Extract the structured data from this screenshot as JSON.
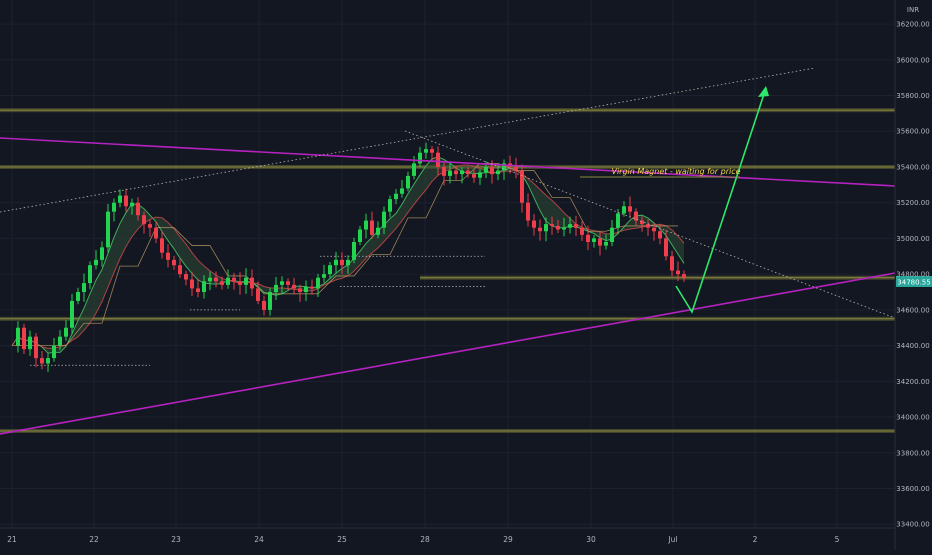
{
  "chart_data": {
    "type": "candlestick",
    "currency": "INR",
    "last_price_label": "34780.55",
    "annotation": "Virgin Magnet - waiting for price",
    "y_axis_ticks": [
      "36200.00",
      "36000.00",
      "35800.00",
      "35600.00",
      "35400.00",
      "35200.00",
      "35000.00",
      "34800.00",
      "34600.00",
      "34400.00",
      "34200.00",
      "34000.00",
      "33800.00",
      "33600.00",
      "33400.00"
    ],
    "x_axis_ticks": [
      "21",
      "22",
      "23",
      "24",
      "25",
      "28",
      "29",
      "30",
      "Jul",
      "2",
      "5"
    ],
    "ylim": [
      33390,
      36290
    ],
    "horizontal_levels": [
      35718,
      35400,
      34780,
      34550,
      33922
    ],
    "colors": {
      "background": "#131722",
      "up": "#26a69a",
      "up_bright": "#22d44f",
      "down": "#ef3e4c",
      "resistance_band": "#6b6a35",
      "trendline": "#b622c0",
      "projection": "#2ee86a",
      "ichimoku_cloud": "#2e4a34",
      "dotted": "#b8b8b8"
    },
    "ohlc_close_path": [
      [
        0,
        34400
      ],
      [
        6,
        34500
      ],
      [
        12,
        34380
      ],
      [
        18,
        34450
      ],
      [
        24,
        34330
      ],
      [
        30,
        34300
      ],
      [
        36,
        34330
      ],
      [
        42,
        34400
      ],
      [
        48,
        34450
      ],
      [
        54,
        34500
      ],
      [
        60,
        34650
      ],
      [
        66,
        34700
      ],
      [
        72,
        34750
      ],
      [
        78,
        34850
      ],
      [
        84,
        34880
      ],
      [
        90,
        34950
      ],
      [
        96,
        35150
      ],
      [
        102,
        35200
      ],
      [
        108,
        35240
      ],
      [
        114,
        35180
      ],
      [
        120,
        35200
      ],
      [
        126,
        35130
      ],
      [
        132,
        35080
      ],
      [
        138,
        35060
      ],
      [
        144,
        35000
      ],
      [
        150,
        34920
      ],
      [
        156,
        34880
      ],
      [
        162,
        34850
      ],
      [
        168,
        34800
      ],
      [
        174,
        34770
      ],
      [
        180,
        34720
      ],
      [
        186,
        34700
      ],
      [
        192,
        34760
      ],
      [
        198,
        34780
      ],
      [
        204,
        34760
      ],
      [
        210,
        34740
      ],
      [
        216,
        34780
      ],
      [
        222,
        34760
      ],
      [
        228,
        34740
      ],
      [
        234,
        34780
      ],
      [
        240,
        34720
      ],
      [
        246,
        34650
      ],
      [
        252,
        34600
      ],
      [
        258,
        34700
      ],
      [
        264,
        34740
      ],
      [
        270,
        34760
      ],
      [
        276,
        34740
      ],
      [
        282,
        34720
      ],
      [
        288,
        34700
      ],
      [
        294,
        34730
      ],
      [
        300,
        34720
      ],
      [
        306,
        34780
      ],
      [
        312,
        34800
      ],
      [
        318,
        34850
      ],
      [
        324,
        34880
      ],
      [
        330,
        34850
      ],
      [
        336,
        34880
      ],
      [
        342,
        34980
      ],
      [
        348,
        35050
      ],
      [
        354,
        35100
      ],
      [
        360,
        35020
      ],
      [
        366,
        35060
      ],
      [
        372,
        35150
      ],
      [
        378,
        35220
      ],
      [
        384,
        35250
      ],
      [
        390,
        35280
      ],
      [
        396,
        35350
      ],
      [
        402,
        35420
      ],
      [
        408,
        35480
      ],
      [
        414,
        35500
      ],
      [
        420,
        35480
      ],
      [
        426,
        35400
      ],
      [
        432,
        35350
      ],
      [
        438,
        35380
      ],
      [
        444,
        35360
      ],
      [
        450,
        35380
      ],
      [
        456,
        35360
      ],
      [
        462,
        35340
      ],
      [
        468,
        35370
      ],
      [
        474,
        35400
      ],
      [
        480,
        35360
      ],
      [
        486,
        35380
      ],
      [
        492,
        35420
      ],
      [
        498,
        35400
      ],
      [
        504,
        35380
      ],
      [
        510,
        35200
      ],
      [
        516,
        35100
      ],
      [
        522,
        35060
      ],
      [
        528,
        35040
      ],
      [
        534,
        35080
      ],
      [
        540,
        35070
      ],
      [
        546,
        35050
      ],
      [
        552,
        35060
      ],
      [
        558,
        35080
      ],
      [
        564,
        35060
      ],
      [
        570,
        35020
      ],
      [
        576,
        34980
      ],
      [
        582,
        35000
      ],
      [
        588,
        34960
      ],
      [
        594,
        34980
      ],
      [
        600,
        35060
      ],
      [
        606,
        35140
      ],
      [
        612,
        35180
      ],
      [
        618,
        35150
      ],
      [
        624,
        35100
      ],
      [
        630,
        35080
      ],
      [
        636,
        35060
      ],
      [
        642,
        35040
      ],
      [
        648,
        35000
      ],
      [
        654,
        34900
      ],
      [
        660,
        34820
      ],
      [
        666,
        34800
      ],
      [
        672,
        34780
      ]
    ]
  }
}
